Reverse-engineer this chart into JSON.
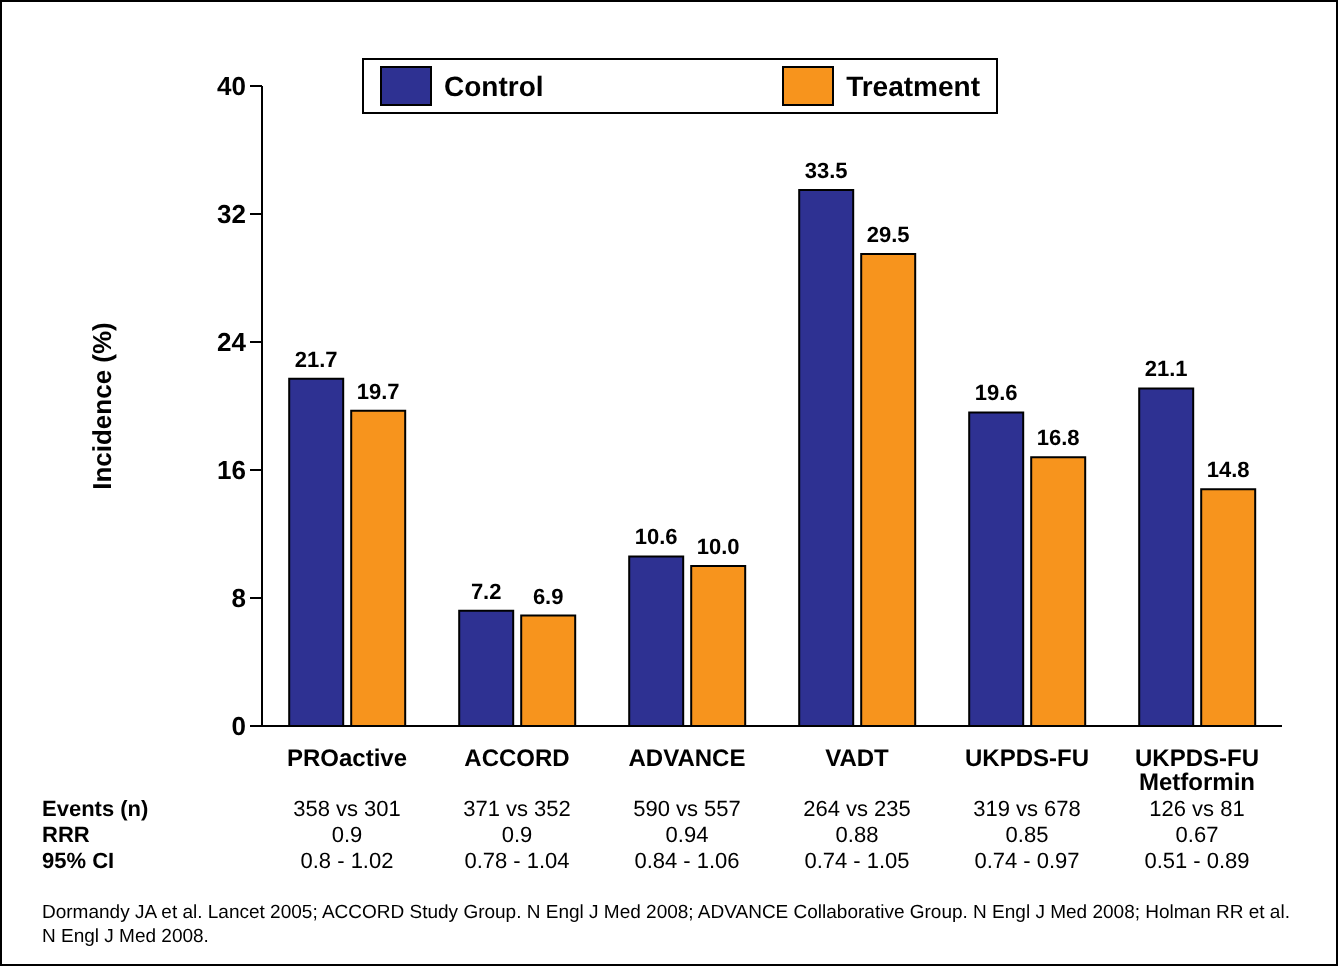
{
  "chart_data": {
    "type": "bar",
    "ylabel": "Incidence (%)",
    "categories": [
      "PROactive",
      "ACCORD",
      "ADVANCE",
      "VADT",
      "UKPDS-FU",
      "UKPDS-FU Metformin"
    ],
    "series": [
      {
        "name": "Control",
        "color": "#2e3192",
        "values": [
          21.7,
          7.2,
          10.6,
          33.5,
          19.6,
          21.1
        ],
        "value_labels": [
          "21.7",
          "7.2",
          "10.6",
          "33.5",
          "19.6",
          "21.1"
        ]
      },
      {
        "name": "Treatment",
        "color": "#f7941d",
        "values": [
          19.7,
          6.9,
          10.0,
          29.5,
          16.8,
          14.8
        ],
        "value_labels": [
          "19.7",
          "6.9",
          "10.0",
          "29.5",
          "16.8",
          "14.8"
        ]
      }
    ],
    "ylim": [
      0,
      40
    ],
    "yticks": [
      0,
      8,
      16,
      24,
      32,
      40
    ],
    "grid": false,
    "legend": "top",
    "annotations": [
      "Events (n)",
      "358 vs 301",
      "371 vs 352",
      "590 vs 557",
      "264 vs 235",
      "319 vs 678",
      "126 vs 81",
      "RRR",
      "0.9",
      "0.9",
      "0.94",
      "0.88",
      "0.85",
      "0.67",
      "95% CI",
      "0.8 - 1.02",
      "0.78 - 1.04",
      "0.84 - 1.06",
      "0.74 - 1.05",
      "0.74 - 0.97",
      "0.51 - 0.89",
      "Dormandy JA et al. Lancet 2005; ACCORD Study Group. N Engl J Med 2008; ADVANCE Collaborative Group. N Engl J Med 2008; Holman RR et al. N Engl J Med 2008."
    ]
  }
}
